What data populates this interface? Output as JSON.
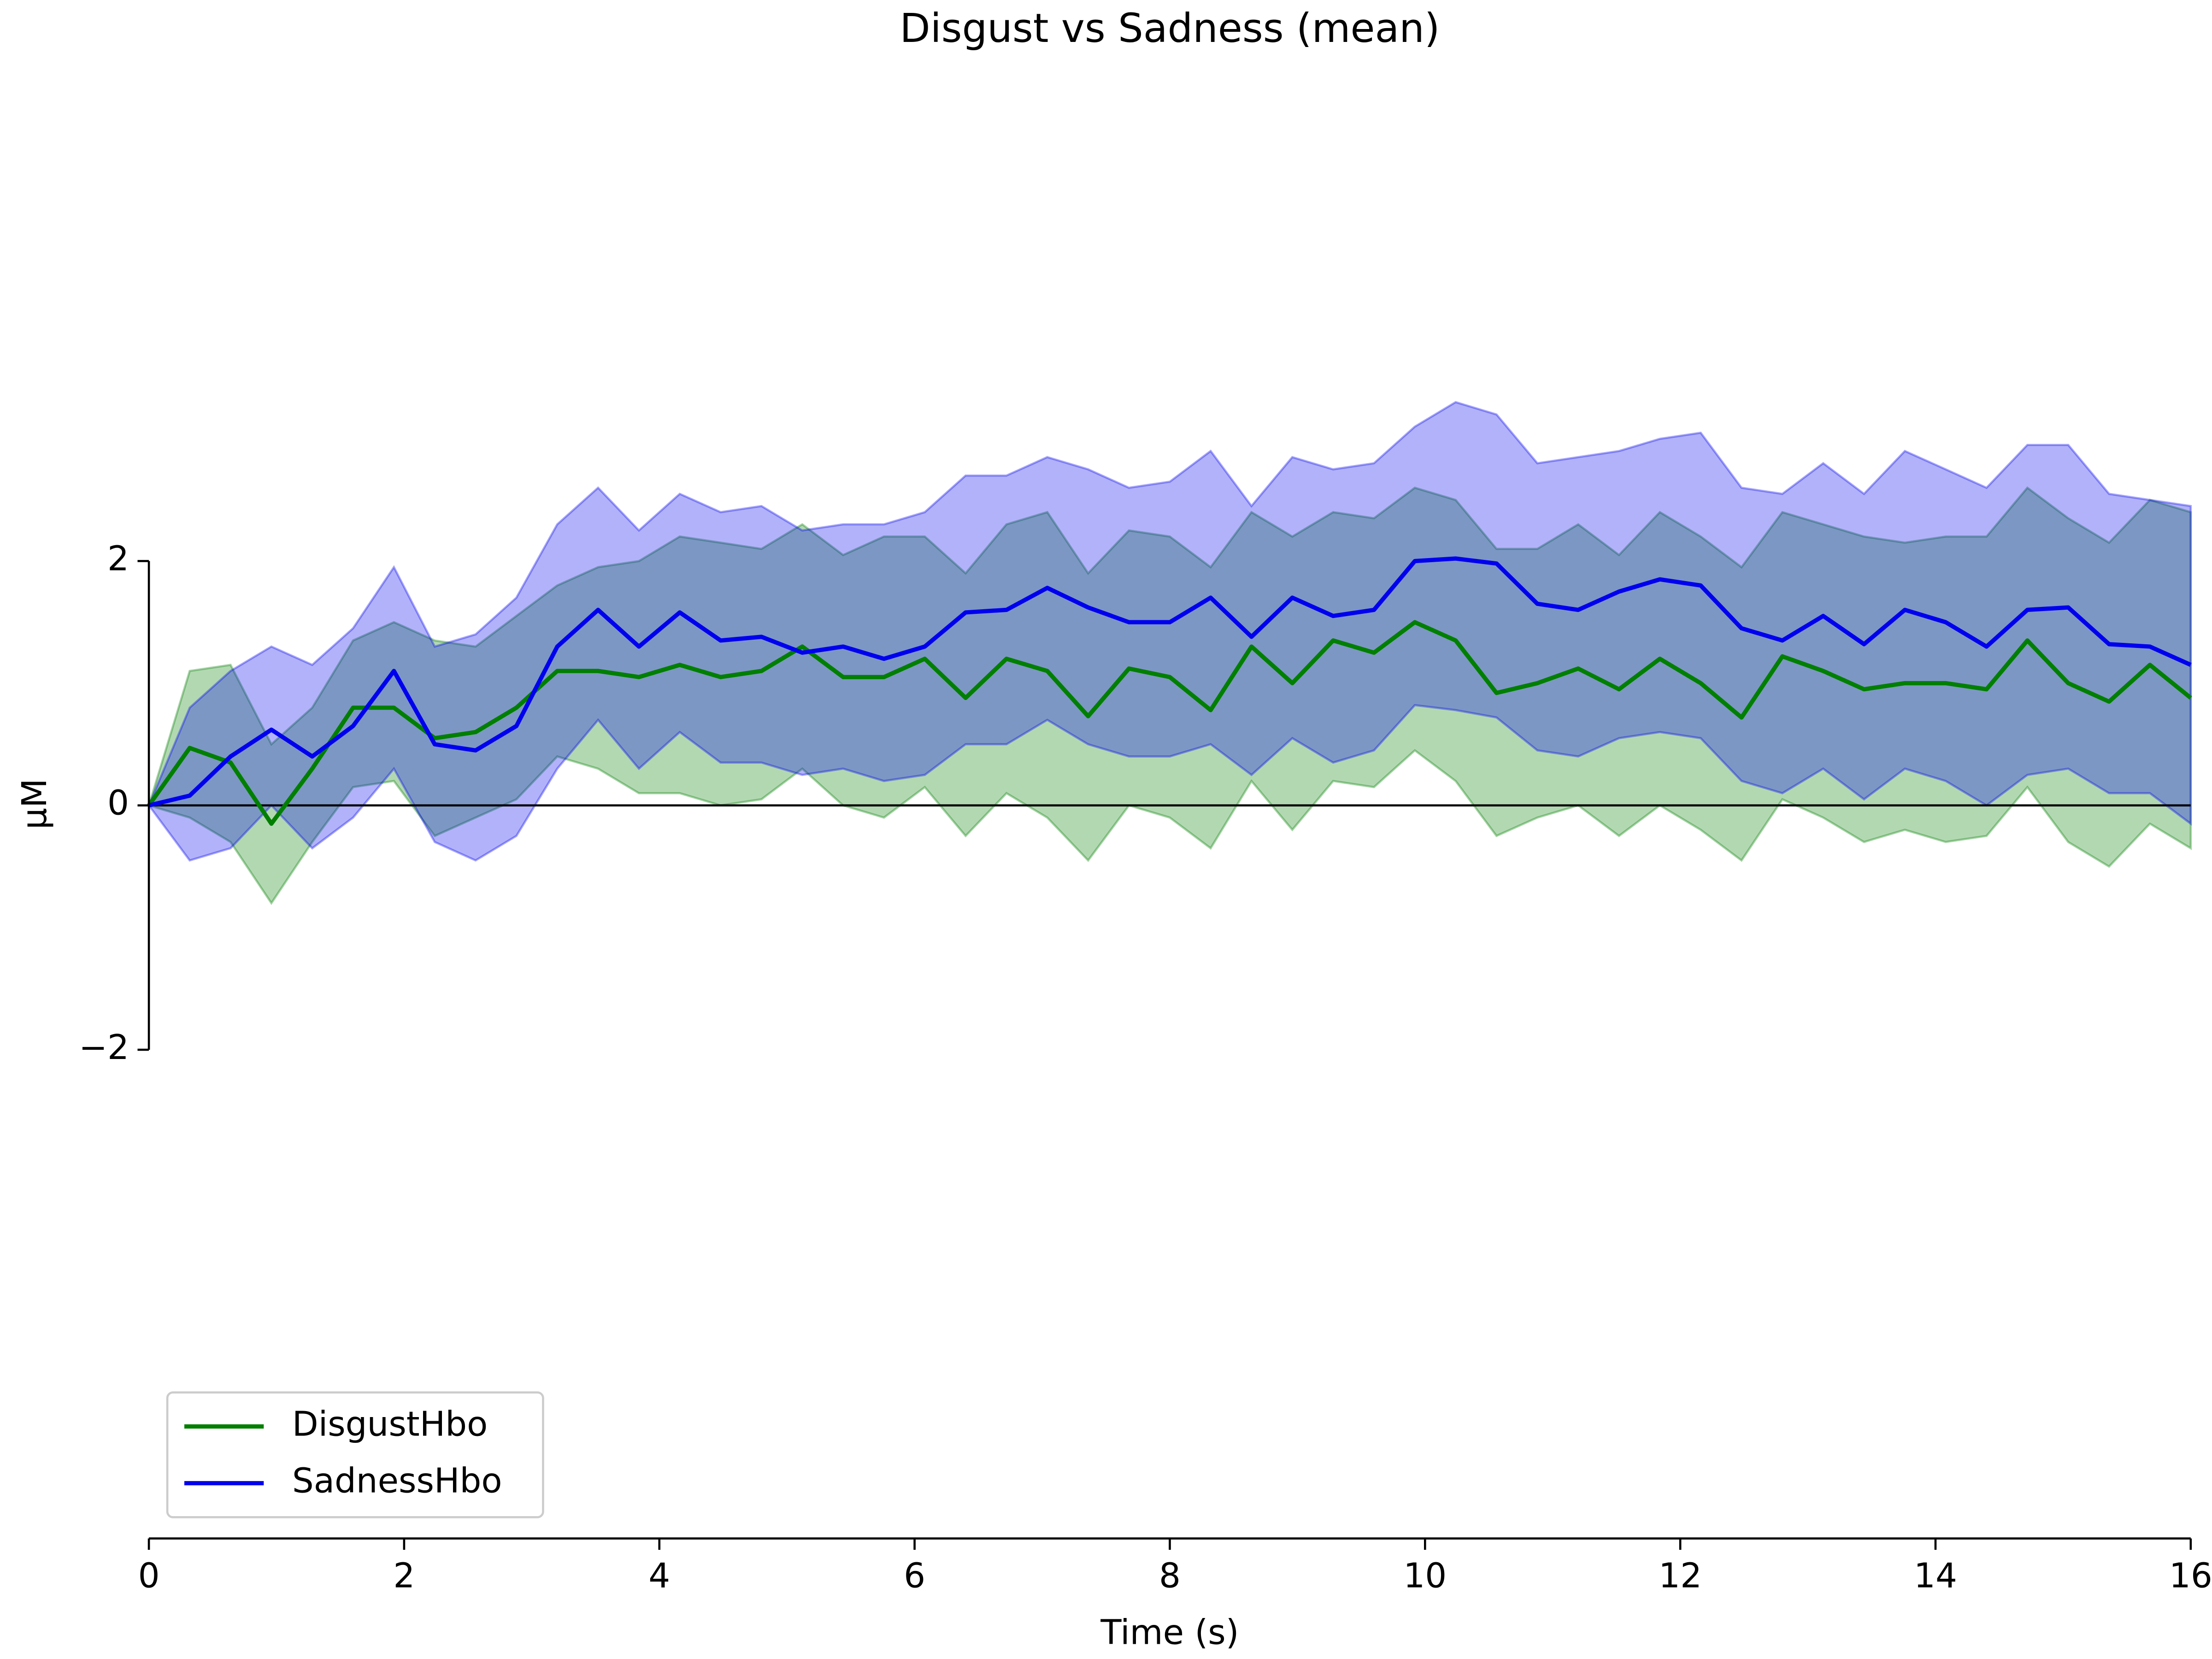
{
  "chart_data": {
    "type": "line",
    "title": "Disgust vs Sadness (mean)",
    "xlabel": "Time (s)",
    "ylabel": "µM",
    "x": [
      0,
      0.32,
      0.64,
      0.96,
      1.28,
      1.6,
      1.92,
      2.24,
      2.56,
      2.88,
      3.2,
      3.52,
      3.84,
      4.16,
      4.48,
      4.8,
      5.12,
      5.44,
      5.76,
      6.08,
      6.4,
      6.72,
      7.04,
      7.36,
      7.68,
      8,
      8.32,
      8.64,
      8.96,
      9.28,
      9.6,
      9.92,
      10.24,
      10.56,
      10.88,
      11.2,
      11.52,
      11.84,
      12.16,
      12.48,
      12.8,
      13.12,
      13.44,
      13.76,
      14.08,
      14.4,
      14.72,
      15.04,
      15.36,
      15.68,
      16
    ],
    "series": [
      {
        "name": "DisgustHbo",
        "color": "#007f00",
        "values": [
          0,
          0.47,
          0.35,
          -0.15,
          0.3,
          0.8,
          0.8,
          0.55,
          0.6,
          0.8,
          1.1,
          1.1,
          1.05,
          1.15,
          1.05,
          1.1,
          1.3,
          1.05,
          1.05,
          1.2,
          0.88,
          1.2,
          1.1,
          0.73,
          1.12,
          1.05,
          0.78,
          1.3,
          1.0,
          1.35,
          1.25,
          1.5,
          1.35,
          0.92,
          1.0,
          1.12,
          0.95,
          1.2,
          1.0,
          0.72,
          1.22,
          1.1,
          0.95,
          1.0,
          1.0,
          0.95,
          1.35,
          1.0,
          0.85,
          1.15,
          0.88
        ],
        "upper": [
          0,
          1.1,
          1.15,
          0.5,
          0.8,
          1.35,
          1.5,
          1.35,
          1.3,
          1.55,
          1.8,
          1.95,
          2.0,
          2.2,
          2.15,
          2.1,
          2.3,
          2.05,
          2.2,
          2.2,
          1.9,
          2.3,
          2.4,
          1.9,
          2.25,
          2.2,
          1.95,
          2.4,
          2.2,
          2.4,
          2.35,
          2.6,
          2.5,
          2.1,
          2.1,
          2.3,
          2.05,
          2.4,
          2.2,
          1.95,
          2.4,
          2.3,
          2.2,
          2.15,
          2.2,
          2.2,
          2.6,
          2.35,
          2.15,
          2.5,
          2.4
        ],
        "lower": [
          0,
          -0.1,
          -0.3,
          -0.8,
          -0.3,
          0.15,
          0.2,
          -0.25,
          -0.1,
          0.05,
          0.4,
          0.3,
          0.1,
          0.1,
          0.0,
          0.05,
          0.3,
          0.0,
          -0.1,
          0.15,
          -0.25,
          0.1,
          -0.1,
          -0.45,
          0.0,
          -0.1,
          -0.35,
          0.2,
          -0.2,
          0.2,
          0.15,
          0.45,
          0.2,
          -0.25,
          -0.1,
          0.0,
          -0.25,
          0.0,
          -0.2,
          -0.45,
          0.05,
          -0.1,
          -0.3,
          -0.2,
          -0.3,
          -0.25,
          0.15,
          -0.3,
          -0.5,
          -0.15,
          -0.35
        ]
      },
      {
        "name": "SadnessHbo",
        "color": "#0000ee",
        "values": [
          0,
          0.08,
          0.4,
          0.62,
          0.4,
          0.65,
          1.1,
          0.5,
          0.45,
          0.65,
          1.3,
          1.6,
          1.3,
          1.58,
          1.35,
          1.38,
          1.25,
          1.3,
          1.2,
          1.3,
          1.58,
          1.6,
          1.78,
          1.62,
          1.5,
          1.5,
          1.7,
          1.38,
          1.7,
          1.55,
          1.6,
          2.0,
          2.02,
          1.98,
          1.65,
          1.6,
          1.75,
          1.85,
          1.8,
          1.45,
          1.35,
          1.55,
          1.32,
          1.6,
          1.5,
          1.3,
          1.6,
          1.62,
          1.32,
          1.3,
          1.15
        ],
        "upper": [
          0,
          0.8,
          1.1,
          1.3,
          1.15,
          1.45,
          1.95,
          1.3,
          1.4,
          1.7,
          2.3,
          2.6,
          2.25,
          2.55,
          2.4,
          2.45,
          2.25,
          2.3,
          2.3,
          2.4,
          2.7,
          2.7,
          2.85,
          2.75,
          2.6,
          2.65,
          2.9,
          2.45,
          2.85,
          2.75,
          2.8,
          3.1,
          3.3,
          3.2,
          2.8,
          2.85,
          2.9,
          3.0,
          3.05,
          2.6,
          2.55,
          2.8,
          2.55,
          2.9,
          2.75,
          2.6,
          2.95,
          2.95,
          2.55,
          2.5,
          2.45
        ],
        "lower": [
          0,
          -0.45,
          -0.35,
          0.0,
          -0.35,
          -0.1,
          0.3,
          -0.3,
          -0.45,
          -0.25,
          0.3,
          0.7,
          0.3,
          0.6,
          0.35,
          0.35,
          0.25,
          0.3,
          0.2,
          0.25,
          0.5,
          0.5,
          0.7,
          0.5,
          0.4,
          0.4,
          0.5,
          0.25,
          0.55,
          0.35,
          0.45,
          0.82,
          0.78,
          0.72,
          0.45,
          0.4,
          0.55,
          0.6,
          0.55,
          0.2,
          0.1,
          0.3,
          0.05,
          0.3,
          0.2,
          0.0,
          0.25,
          0.3,
          0.1,
          0.1,
          -0.15
        ]
      }
    ],
    "xlim": [
      0,
      16
    ],
    "xticks": [
      0,
      2,
      4,
      6,
      8,
      10,
      12,
      14,
      16
    ],
    "ylim": [
      -6,
      6
    ],
    "yticks": [
      {
        "value": -2,
        "label": "−2"
      },
      0,
      2
    ],
    "hlines": [
      0
    ],
    "legend": "lower left"
  }
}
